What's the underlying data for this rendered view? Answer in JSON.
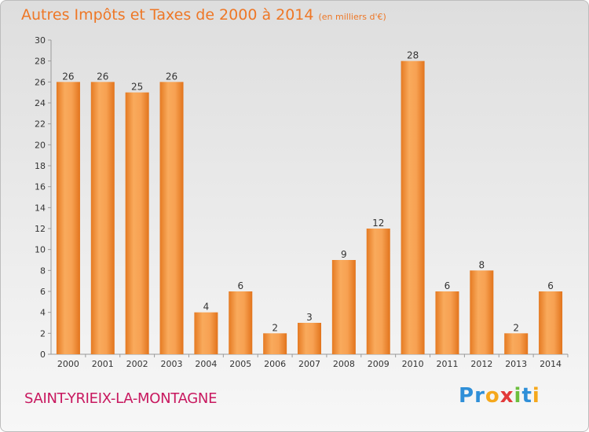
{
  "title": "Autres Impôts et Taxes de 2000 à 2014",
  "title_unit": "(en milliers d'€)",
  "commune": "SAINT-YRIEIX-LA-MONTAGNE",
  "logo": {
    "text": "Proxiti",
    "letters": [
      "P",
      "r",
      "o",
      "x",
      "i",
      "t",
      "i"
    ],
    "colors": [
      "#2f8fd8",
      "#2f8fd8",
      "#f5a81c",
      "#e23a3a",
      "#6cbf3e",
      "#2f8fd8",
      "#f5a81c"
    ]
  },
  "colors": {
    "accent": "#ee7726",
    "commune": "#c8185f",
    "bar_light": "#f8a85a",
    "bar_dark": "#e57a22"
  },
  "chart_data": {
    "type": "bar",
    "categories": [
      "2000",
      "2001",
      "2002",
      "2003",
      "2004",
      "2005",
      "2006",
      "2007",
      "2008",
      "2009",
      "2010",
      "2011",
      "2012",
      "2013",
      "2014"
    ],
    "values": [
      26,
      26,
      25,
      26,
      4,
      6,
      2,
      3,
      9,
      12,
      28,
      6,
      8,
      2,
      6
    ],
    "ylim": [
      0,
      30
    ],
    "yticks": [
      0,
      2,
      4,
      6,
      8,
      10,
      12,
      14,
      16,
      18,
      20,
      22,
      24,
      26,
      28,
      30
    ],
    "grid": false,
    "data_labels": true
  }
}
